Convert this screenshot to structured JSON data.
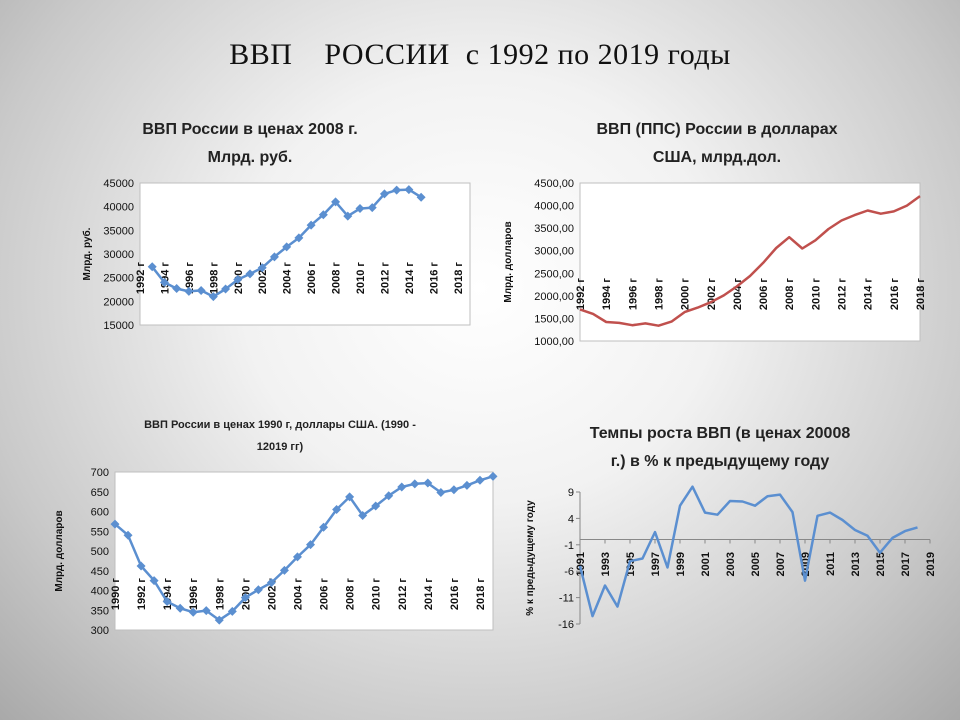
{
  "slide": {
    "title": "ВВП    РОССИИ  с 1992 по 2019 годы"
  },
  "chart_data": [
    {
      "id": "c1",
      "type": "line",
      "title": [
        "ВВП России в ценах 2008 г.",
        "Млрд. руб."
      ],
      "xlabel": "",
      "ylabel": "Млрд. руб.",
      "ylim": [
        15000,
        45000
      ],
      "yticks": [
        "15000",
        "20000",
        "25000",
        "30000",
        "35000",
        "40000",
        "45000"
      ],
      "xlim": [
        1992,
        2019
      ],
      "xticks": [
        "1992 г",
        "1994 г",
        "1996 г",
        "1998 г",
        "2000 г",
        "2002 г",
        "2004 г",
        "2006 г",
        "2008 г",
        "2010 г",
        "2012 г",
        "2014 г",
        "2016 г",
        "2018 г"
      ],
      "series": [
        {
          "color": "#5b8fd0",
          "marker": "diamond",
          "x": [
            1993,
            1994,
            1995,
            1996,
            1997,
            1998,
            1999,
            2000,
            2001,
            2002,
            2003,
            2004,
            2005,
            2006,
            2007,
            2008,
            2009,
            2010,
            2011,
            2012,
            2013,
            2014,
            2015
          ],
          "values": [
            27300,
            24000,
            22700,
            22100,
            22300,
            21000,
            22600,
            24600,
            25800,
            27100,
            29400,
            31500,
            33400,
            36100,
            38300,
            41000,
            38000,
            39600,
            39800,
            42700,
            43500,
            43600,
            42000
          ]
        }
      ]
    },
    {
      "id": "c2",
      "type": "line",
      "title": [
        "ВВП (ППС) России в долларах",
        "США, млрд.дол."
      ],
      "xlabel": "",
      "ylabel": "Млрд. долларов",
      "ylim": [
        1000,
        4500
      ],
      "yticks": [
        "1000,00",
        "1500,00",
        "2000,00",
        "2500,00",
        "3000,00",
        "3500,00",
        "4000,00",
        "4500,00"
      ],
      "xlim": [
        1992,
        2018
      ],
      "xticks": [
        "1992 г",
        "1994 г",
        "1996 г",
        "1998 г",
        "2000 г",
        "2002 г",
        "2004 г",
        "2006 г",
        "2008 г",
        "2010 г",
        "2012 г",
        "2014 г",
        "2016 г",
        "2018 г"
      ],
      "series": [
        {
          "color": "#c0504d",
          "marker": "none",
          "x": [
            1992,
            1993,
            1994,
            1995,
            1996,
            1997,
            1998,
            1999,
            2000,
            2001,
            2002,
            2003,
            2004,
            2005,
            2006,
            2007,
            2008,
            2009,
            2010,
            2011,
            2012,
            2013,
            2014,
            2015,
            2016,
            2017,
            2018
          ],
          "values": [
            1700,
            1600,
            1420,
            1400,
            1350,
            1390,
            1340,
            1430,
            1640,
            1740,
            1860,
            2010,
            2210,
            2440,
            2730,
            3060,
            3300,
            3050,
            3230,
            3480,
            3670,
            3790,
            3890,
            3820,
            3870,
            4000,
            4210
          ]
        }
      ]
    },
    {
      "id": "c3",
      "type": "line",
      "title": [
        "ВВП России в ценах 1990 г, доллары США. (1990 -",
        "12019 гг)"
      ],
      "xlabel": "",
      "ylabel": "Млрд. долларов",
      "ylim": [
        300,
        700
      ],
      "yticks": [
        "300",
        "350",
        "400",
        "450",
        "500",
        "550",
        "600",
        "650",
        "700"
      ],
      "xlim": [
        1990,
        2019
      ],
      "xticks": [
        "1990 г",
        "1992 г",
        "1994 г",
        "1996 г",
        "1998 г",
        "2000 г",
        "2002 г",
        "2004 г",
        "2006 г",
        "2008 г",
        "2010 г",
        "2012 г",
        "2014 г",
        "2016 г",
        "2018 г"
      ],
      "series": [
        {
          "color": "#5b8fd0",
          "marker": "diamond",
          "x": [
            1990,
            1991,
            1992,
            1993,
            1994,
            1995,
            1996,
            1997,
            1998,
            1999,
            2000,
            2001,
            2002,
            2003,
            2004,
            2005,
            2006,
            2007,
            2008,
            2009,
            2010,
            2011,
            2012,
            2013,
            2014,
            2015,
            2016,
            2017,
            2018,
            2019
          ],
          "values": [
            568,
            540,
            462,
            425,
            372,
            355,
            345,
            349,
            325,
            347,
            382,
            402,
            420,
            451,
            485,
            516,
            560,
            605,
            637,
            590,
            614,
            640,
            662,
            670,
            672,
            648,
            655,
            666,
            679,
            689
          ]
        }
      ]
    },
    {
      "id": "c4",
      "type": "line",
      "title": [
        "Темпы роста ВВП (в ценах 20008",
        "г.) в % к предыдущему году"
      ],
      "xlabel": "",
      "ylabel": "% к предыдущему году",
      "ylim": [
        -16,
        9
      ],
      "yticks": [
        "-16",
        "-11",
        "-6",
        "-1",
        "4",
        "9"
      ],
      "xlim": [
        1991,
        2019
      ],
      "xticks": [
        "1991",
        "1993",
        "1995",
        "1997",
        "1999",
        "2001",
        "2003",
        "2005",
        "2007",
        "2009",
        "2011",
        "2013",
        "2015",
        "2017",
        "2019"
      ],
      "series": [
        {
          "color": "#5b8fd0",
          "marker": "none",
          "x": [
            1991,
            1992,
            1993,
            1994,
            1995,
            1996,
            1997,
            1998,
            1999,
            2000,
            2001,
            2002,
            2003,
            2004,
            2005,
            2006,
            2007,
            2008,
            2009,
            2010,
            2011,
            2012,
            2013,
            2014,
            2015,
            2016,
            2017,
            2018
          ],
          "values": [
            -5,
            -14.5,
            -8.7,
            -12.7,
            -4.1,
            -3.6,
            1.4,
            -5.3,
            6.4,
            10,
            5.1,
            4.7,
            7.3,
            7.2,
            6.4,
            8.2,
            8.5,
            5.2,
            -7.8,
            4.5,
            5.1,
            3.7,
            1.8,
            0.7,
            -2.5,
            0.3,
            1.6,
            2.3
          ]
        }
      ]
    }
  ]
}
